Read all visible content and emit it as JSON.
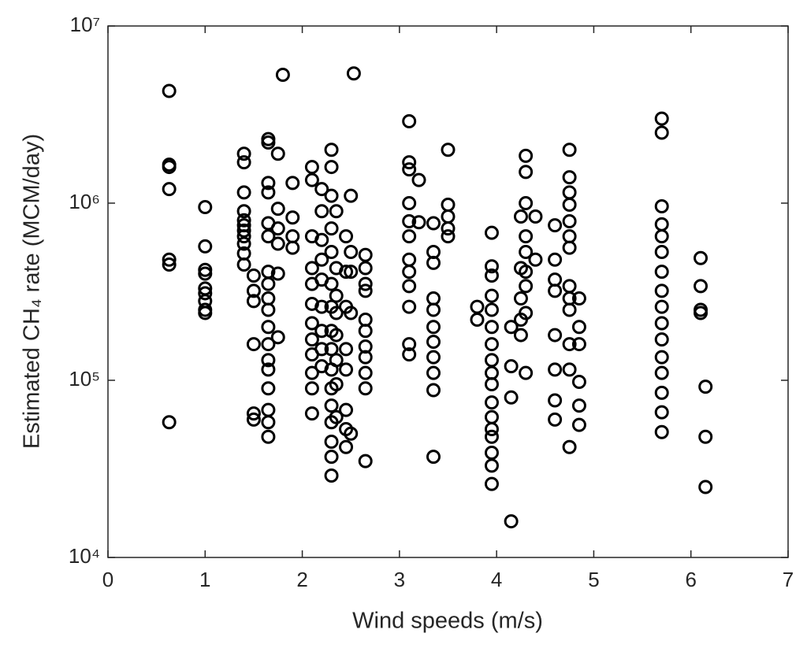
{
  "chart_data": {
    "type": "scatter",
    "xlabel": "Wind speeds (m/s)",
    "ylabel": "Estimated CH₄ rate (MCM/day)",
    "xlim": [
      0,
      7
    ],
    "xticks": [
      0,
      1,
      2,
      3,
      4,
      5,
      6,
      7
    ],
    "ylim": [
      10000,
      10000000
    ],
    "yticks": [
      {
        "value": 10000,
        "label": "10⁴"
      },
      {
        "value": 100000,
        "label": "10⁵"
      },
      {
        "value": 1000000,
        "label": "10⁶"
      },
      {
        "value": 10000000,
        "label": "10⁷"
      }
    ],
    "yscale": "log",
    "grid": false,
    "color": "#000000",
    "x": [
      0.63,
      0.63,
      0.63,
      0.63,
      0.63,
      0.63,
      0.63,
      1.0,
      1.0,
      1.0,
      1.0,
      1.0,
      1.0,
      1.0,
      1.0,
      1.0,
      1.4,
      1.4,
      1.4,
      1.4,
      1.4,
      1.4,
      1.4,
      1.4,
      1.4,
      1.4,
      1.4,
      1.5,
      1.5,
      1.5,
      1.5,
      1.5,
      1.5,
      1.65,
      1.65,
      1.65,
      1.65,
      1.65,
      1.65,
      1.65,
      1.65,
      1.65,
      1.65,
      1.65,
      1.65,
      1.65,
      1.65,
      1.65,
      1.65,
      1.65,
      1.65,
      1.75,
      1.75,
      1.75,
      1.75,
      1.75,
      1.75,
      1.8,
      1.9,
      1.9,
      1.9,
      1.9,
      2.1,
      2.1,
      2.1,
      2.1,
      2.1,
      2.1,
      2.1,
      2.1,
      2.1,
      2.1,
      2.1,
      2.1,
      2.2,
      2.2,
      2.2,
      2.2,
      2.2,
      2.2,
      2.2,
      2.2,
      2.2,
      2.3,
      2.3,
      2.3,
      2.3,
      2.3,
      2.3,
      2.3,
      2.3,
      2.3,
      2.3,
      2.3,
      2.3,
      2.3,
      2.3,
      2.3,
      2.3,
      2.35,
      2.35,
      2.35,
      2.35,
      2.35,
      2.35,
      2.35,
      2.35,
      2.45,
      2.45,
      2.45,
      2.45,
      2.45,
      2.45,
      2.45,
      2.45,
      2.5,
      2.5,
      2.5,
      2.5,
      2.5,
      2.53,
      2.65,
      2.65,
      2.65,
      2.65,
      2.65,
      2.65,
      2.65,
      2.65,
      2.65,
      2.65,
      2.65,
      3.1,
      3.1,
      3.1,
      3.1,
      3.1,
      3.1,
      3.1,
      3.1,
      3.1,
      3.1,
      3.1,
      3.1,
      3.2,
      3.2,
      3.35,
      3.35,
      3.35,
      3.35,
      3.35,
      3.35,
      3.35,
      3.35,
      3.35,
      3.35,
      3.35,
      3.5,
      3.5,
      3.5,
      3.5,
      3.5,
      3.8,
      3.8,
      3.95,
      3.95,
      3.95,
      3.95,
      3.95,
      3.95,
      3.95,
      3.95,
      3.95,
      3.95,
      3.95,
      3.95,
      3.95,
      3.95,
      3.95,
      3.95,
      3.95,
      4.15,
      4.15,
      4.15,
      4.15,
      4.25,
      4.25,
      4.25,
      4.25,
      4.25,
      4.3,
      4.3,
      4.3,
      4.3,
      4.3,
      4.3,
      4.3,
      4.3,
      4.3,
      4.4,
      4.4,
      4.6,
      4.6,
      4.6,
      4.6,
      4.6,
      4.6,
      4.6,
      4.6,
      4.75,
      4.75,
      4.75,
      4.75,
      4.75,
      4.75,
      4.75,
      4.75,
      4.75,
      4.75,
      4.75,
      4.75,
      4.75,
      4.85,
      4.85,
      4.85,
      4.85,
      4.85,
      4.85,
      5.7,
      5.7,
      5.7,
      5.7,
      5.7,
      5.7,
      5.7,
      5.7,
      5.7,
      5.7,
      5.7,
      5.7,
      5.7,
      5.7,
      5.7,
      5.7,
      6.1,
      6.1,
      6.1,
      6.1,
      6.15,
      6.15,
      6.15
    ],
    "y": [
      4300000,
      1650000,
      1600000,
      1200000,
      480000,
      450000,
      58000,
      950000,
      570000,
      420000,
      400000,
      330000,
      310000,
      280000,
      250000,
      240000,
      1900000,
      1700000,
      1150000,
      900000,
      800000,
      750000,
      700000,
      650000,
      590000,
      520000,
      450000,
      390000,
      320000,
      280000,
      160000,
      65000,
      60000,
      2300000,
      2200000,
      1300000,
      1150000,
      770000,
      650000,
      410000,
      350000,
      290000,
      250000,
      200000,
      160000,
      130000,
      115000,
      90000,
      68000,
      58000,
      48000,
      1900000,
      930000,
      720000,
      590000,
      400000,
      175000,
      5300000,
      1300000,
      830000,
      650000,
      560000,
      1600000,
      1350000,
      650000,
      430000,
      350000,
      270000,
      210000,
      170000,
      140000,
      110000,
      90000,
      65000,
      1200000,
      900000,
      620000,
      480000,
      370000,
      260000,
      190000,
      150000,
      120000,
      2000000,
      1600000,
      1100000,
      720000,
      530000,
      350000,
      260000,
      190000,
      150000,
      115000,
      90000,
      72000,
      58000,
      45000,
      37000,
      29000,
      900000,
      430000,
      300000,
      240000,
      180000,
      130000,
      95000,
      62000,
      650000,
      410000,
      260000,
      150000,
      115000,
      68000,
      53000,
      42000,
      1100000,
      530000,
      410000,
      240000,
      50000,
      5400000,
      510000,
      430000,
      350000,
      320000,
      220000,
      190000,
      155000,
      135000,
      110000,
      90000,
      35000,
      2900000,
      1700000,
      1550000,
      1000000,
      790000,
      650000,
      480000,
      410000,
      340000,
      260000,
      160000,
      140000,
      1350000,
      780000,
      770000,
      530000,
      460000,
      290000,
      250000,
      200000,
      165000,
      135000,
      110000,
      88000,
      37000,
      2000000,
      980000,
      840000,
      720000,
      650000,
      260000,
      220000,
      680000,
      440000,
      390000,
      300000,
      250000,
      200000,
      160000,
      130000,
      110000,
      95000,
      75000,
      62000,
      53000,
      48000,
      39000,
      33000,
      26000,
      16000,
      80000,
      120000,
      200000,
      840000,
      430000,
      290000,
      220000,
      180000,
      1850000,
      1500000,
      1000000,
      650000,
      530000,
      410000,
      340000,
      240000,
      110000,
      840000,
      480000,
      750000,
      480000,
      370000,
      320000,
      180000,
      115000,
      77000,
      60000,
      2000000,
      1400000,
      1150000,
      980000,
      790000,
      650000,
      560000,
      340000,
      290000,
      250000,
      160000,
      115000,
      42000,
      290000,
      200000,
      160000,
      98000,
      72000,
      56000,
      3000000,
      2500000,
      960000,
      760000,
      650000,
      530000,
      410000,
      320000,
      260000,
      210000,
      170000,
      135000,
      110000,
      85000,
      66000,
      51000,
      490000,
      340000,
      250000,
      240000,
      92000,
      48000,
      25000
    ]
  }
}
